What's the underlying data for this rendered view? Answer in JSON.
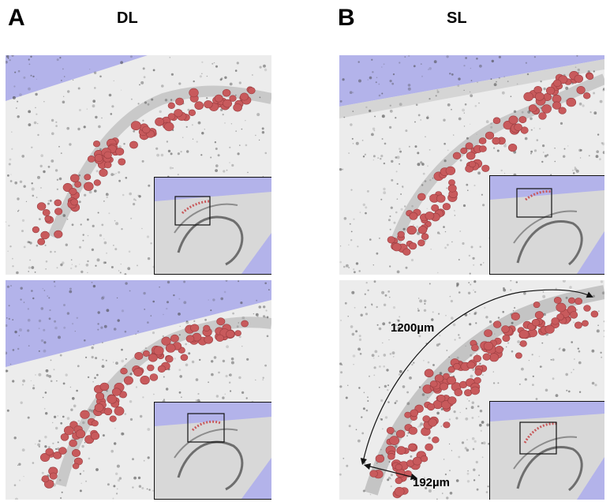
{
  "panels": [
    {
      "letter": "A",
      "condition": "DL"
    },
    {
      "letter": "B",
      "condition": "SL"
    }
  ],
  "measurements": {
    "arc_length": "1200µm",
    "width": "192µm"
  },
  "colors": {
    "background_plane": "#b3b3ea",
    "tissue": "#ececec",
    "cell": "#c85a5c",
    "band": "#8a8a8a"
  }
}
